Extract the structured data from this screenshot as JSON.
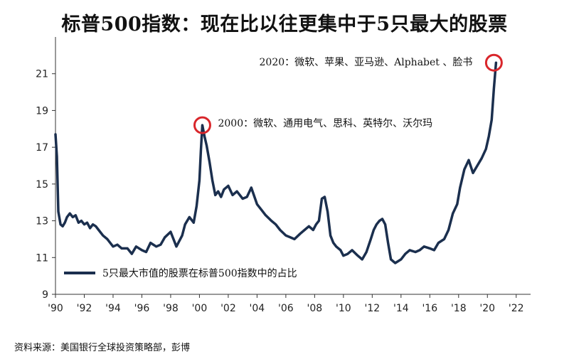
{
  "title": "标普500指数：现在比以往更集中于5只最大的股票",
  "source": "资料来源：美国银行全球投资策略部，彭博",
  "colors": {
    "line": "#1b2f4e",
    "highlight": "#d9262b",
    "axis": "#333333"
  },
  "chart_data": {
    "type": "line",
    "title": "标普500指数：现在比以往更集中于5只最大的股票",
    "xlabel": "",
    "ylabel": "",
    "xlim": [
      1990,
      2023
    ],
    "ylim": [
      9,
      23
    ],
    "x_ticks": [
      1990,
      1992,
      1994,
      1996,
      1998,
      2000,
      2002,
      2004,
      2006,
      2008,
      2010,
      2012,
      2014,
      2016,
      2018,
      2020,
      2022
    ],
    "x_tick_labels": [
      "'90",
      "'92",
      "'94",
      "'96",
      "'98",
      "'00",
      "'02",
      "'04",
      "'06",
      "'08",
      "'10",
      "'12",
      "'14",
      "'16",
      "'18",
      "'20",
      "'22"
    ],
    "y_ticks": [
      9,
      11,
      13,
      15,
      17,
      19,
      21
    ],
    "y_tick_labels": [
      "9",
      "11",
      "13",
      "15",
      "17",
      "19",
      "21"
    ],
    "grid": false,
    "legend": {
      "position": "bottom-left",
      "label": "5只最大市值的股票在标普500指数中的占比"
    },
    "series": [
      {
        "name": "5只最大市值的股票在标普500指数中的占比",
        "x": [
          1990.0,
          1990.1,
          1990.2,
          1990.35,
          1990.5,
          1990.65,
          1990.8,
          1991.0,
          1991.2,
          1991.4,
          1991.6,
          1991.8,
          1992.0,
          1992.2,
          1992.4,
          1992.6,
          1992.8,
          1993.0,
          1993.3,
          1993.6,
          1994.0,
          1994.3,
          1994.6,
          1995.0,
          1995.3,
          1995.6,
          1996.0,
          1996.3,
          1996.6,
          1997.0,
          1997.3,
          1997.6,
          1998.0,
          1998.4,
          1998.8,
          1999.0,
          1999.3,
          1999.6,
          1999.8,
          2000.0,
          2000.1,
          2000.2,
          2000.35,
          2000.5,
          2000.7,
          2000.9,
          2001.1,
          2001.3,
          2001.5,
          2001.7,
          2002.0,
          2002.3,
          2002.6,
          2003.0,
          2003.3,
          2003.6,
          2004.0,
          2004.3,
          2004.6,
          2005.0,
          2005.3,
          2005.6,
          2006.0,
          2006.3,
          2006.6,
          2007.0,
          2007.3,
          2007.6,
          2007.9,
          2008.1,
          2008.3,
          2008.5,
          2008.7,
          2008.9,
          2009.1,
          2009.3,
          2009.5,
          2009.8,
          2010.0,
          2010.3,
          2010.6,
          2011.0,
          2011.3,
          2011.6,
          2011.9,
          2012.1,
          2012.3,
          2012.5,
          2012.7,
          2012.9,
          2013.1,
          2013.3,
          2013.6,
          2014.0,
          2014.3,
          2014.6,
          2015.0,
          2015.3,
          2015.6,
          2016.0,
          2016.3,
          2016.6,
          2017.0,
          2017.3,
          2017.6,
          2017.9,
          2018.1,
          2018.4,
          2018.7,
          2019.0,
          2019.3,
          2019.6,
          2019.9,
          2020.1,
          2020.3,
          2020.45,
          2020.6
        ],
        "values": [
          17.7,
          16.5,
          13.5,
          12.8,
          12.7,
          12.9,
          13.2,
          13.4,
          13.2,
          13.3,
          12.9,
          13.0,
          12.8,
          12.9,
          12.6,
          12.8,
          12.7,
          12.5,
          12.2,
          12.0,
          11.6,
          11.7,
          11.5,
          11.5,
          11.2,
          11.6,
          11.4,
          11.3,
          11.8,
          11.6,
          11.7,
          12.1,
          12.4,
          11.6,
          12.2,
          12.8,
          13.2,
          12.9,
          13.8,
          15.2,
          16.8,
          18.2,
          17.6,
          17.1,
          16.2,
          15.2,
          14.4,
          14.6,
          14.3,
          14.7,
          14.9,
          14.4,
          14.6,
          14.2,
          14.3,
          14.8,
          13.9,
          13.6,
          13.3,
          13.0,
          12.8,
          12.5,
          12.2,
          12.1,
          12.0,
          12.3,
          12.5,
          12.7,
          12.5,
          12.8,
          13.0,
          14.2,
          14.3,
          13.5,
          12.2,
          11.8,
          11.6,
          11.4,
          11.1,
          11.2,
          11.4,
          11.1,
          10.9,
          11.3,
          12.0,
          12.5,
          12.8,
          13.0,
          13.1,
          12.8,
          11.8,
          10.9,
          10.7,
          10.9,
          11.2,
          11.4,
          11.3,
          11.4,
          11.6,
          11.5,
          11.4,
          11.8,
          12.0,
          12.5,
          13.4,
          13.9,
          14.8,
          15.8,
          16.3,
          15.6,
          16.0,
          16.4,
          16.9,
          17.6,
          18.5,
          20.2,
          21.6
        ]
      }
    ],
    "annotations": [
      {
        "label": "2020：微软、苹果、亚马逊、Alphabet 、脸书",
        "x": 2020.45,
        "y": 21.6
      },
      {
        "label": "2000：微软、通用电气、思科、英特尔、沃尔玛",
        "x": 2000.2,
        "y": 18.2
      }
    ]
  }
}
